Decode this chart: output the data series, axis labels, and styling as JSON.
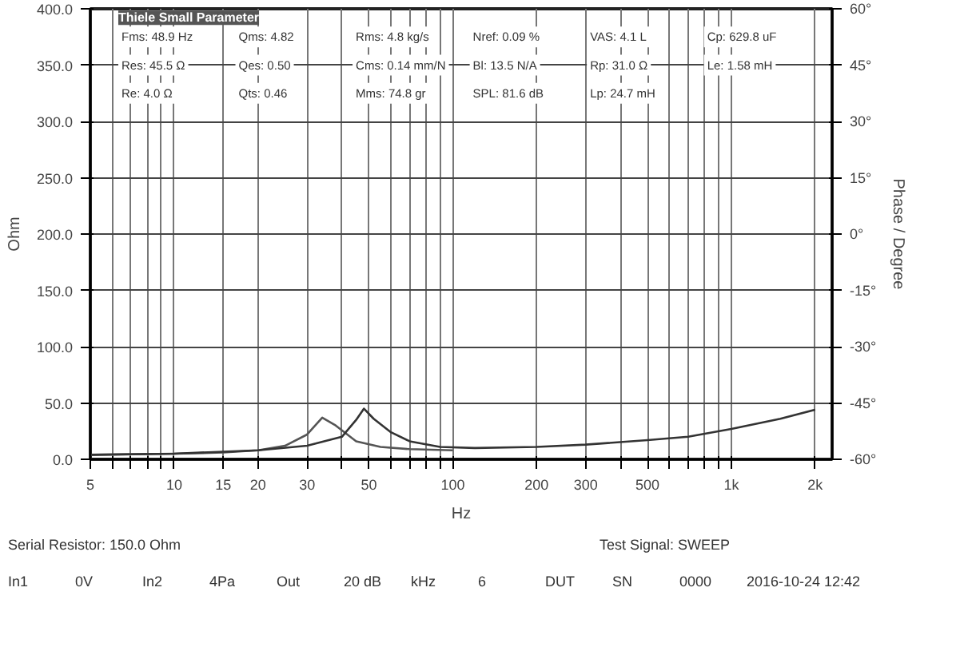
{
  "chart_data": {
    "type": "line",
    "xlabel": "Hz",
    "ylabel": "Ohm",
    "y2label": "Phase / Degree",
    "log": "x",
    "grid": true,
    "line_style": "solid",
    "marker": "none",
    "xlim": [
      5,
      2300
    ],
    "ylim": [
      0,
      400
    ],
    "y2lim": [
      -60,
      60
    ],
    "xticks": [
      5,
      {
        "value": 6,
        "label": null
      },
      {
        "value": 7,
        "label": null
      },
      {
        "value": 8,
        "label": null
      },
      {
        "value": 9,
        "label": null
      },
      10,
      15,
      20,
      30,
      {
        "value": 40,
        "label": null
      },
      50,
      {
        "value": 60,
        "label": null
      },
      {
        "value": 70,
        "label": null
      },
      {
        "value": 80,
        "label": null
      },
      {
        "value": 90,
        "label": null
      },
      100,
      200,
      300,
      {
        "value": 400,
        "label": null
      },
      500,
      {
        "value": 600,
        "label": null
      },
      {
        "value": 700,
        "label": null
      },
      {
        "value": 800,
        "label": null
      },
      {
        "value": 900,
        "label": null
      },
      {
        "value": 1000,
        "label": "1k"
      },
      {
        "value": 2000,
        "label": "2k"
      }
    ],
    "yticks": [
      {
        "value": 0,
        "label": "0.0"
      },
      {
        "value": 50,
        "label": "50.0"
      },
      {
        "value": 100,
        "label": "100.0"
      },
      {
        "value": 150,
        "label": "150.0"
      },
      {
        "value": 200,
        "label": "200.0"
      },
      {
        "value": 250,
        "label": "250.0"
      },
      {
        "value": 300,
        "label": "300.0"
      },
      {
        "value": 350,
        "label": "350.0"
      },
      {
        "value": 400,
        "label": "400.0"
      }
    ],
    "y2ticks": [
      {
        "value": -60,
        "label": "-60°"
      },
      {
        "value": -45,
        "label": "-45°"
      },
      {
        "value": -30,
        "label": "-30°"
      },
      {
        "value": -15,
        "label": "-15°"
      },
      {
        "value": 0,
        "label": "0°"
      },
      {
        "value": 15,
        "label": "15°"
      },
      {
        "value": 30,
        "label": "30°"
      },
      {
        "value": 45,
        "label": "45°"
      },
      {
        "value": 60,
        "label": "60°"
      }
    ],
    "series": [
      {
        "color": "#555555",
        "x": [
          5,
          10,
          15,
          20,
          25,
          30,
          34,
          38,
          45,
          55,
          70,
          100
        ],
        "values": [
          4,
          5,
          6,
          8,
          12,
          22,
          37,
          30,
          16,
          11,
          9,
          8
        ]
      },
      {
        "color": "#333333",
        "x": [
          5,
          10,
          20,
          30,
          40,
          45,
          48,
          52,
          60,
          70,
          90,
          120,
          200,
          300,
          500,
          700,
          1000,
          1500,
          2000
        ],
        "values": [
          4,
          5,
          8,
          12,
          20,
          35,
          45,
          36,
          24,
          16,
          11,
          10,
          11,
          13,
          17,
          20,
          27,
          36,
          44
        ]
      }
    ],
    "annotations": [
      "Thiele Small Parameter",
      "Fms: 48.9 Hz",
      "Qms: 4.82",
      "Rms: 4.8 kg/s",
      "Nref: 0.09 %",
      "VAS: 4.1 L",
      "Cp: 629.8 uF",
      "Res: 45.5 Ω",
      "Qes: 0.50",
      "Cms: 0.14 mm/N",
      "Bl: 13.5 N/A",
      "Rp: 31.0 Ω",
      "Le: 1.58 mH",
      "Re: 4.0 Ω",
      "Qts: 0.46",
      "Mms: 74.8 gr",
      "SPL: 81.6 dB",
      "Lp: 24.7 mH",
      "Serial Resistor: 150.0 Ohm",
      "Test Signal: SWEEP",
      "In1",
      "0V",
      "In2",
      "4Pa",
      "Out",
      "20 dB",
      "kHz",
      "6",
      "DUT",
      "SN",
      "0000",
      "2016-10-24  12:42"
    ]
  }
}
